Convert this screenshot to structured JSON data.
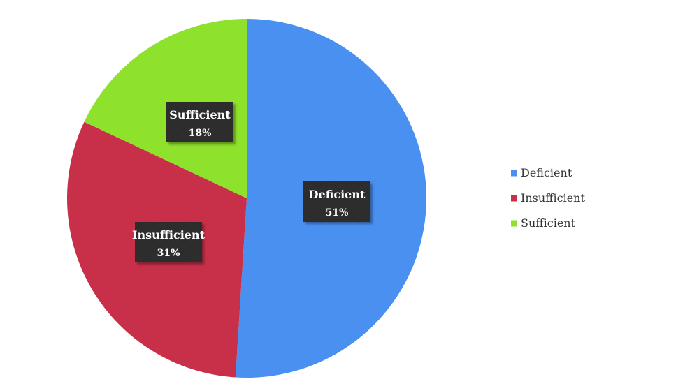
{
  "chart_data": {
    "type": "pie",
    "title": "",
    "slices": [
      {
        "label": "Deficient",
        "value": 51,
        "display": "51%",
        "color": "#4a90f0"
      },
      {
        "label": "Insufficient",
        "value": 31,
        "display": "31%",
        "color": "#c8304a"
      },
      {
        "label": "Sufficient",
        "value": 18,
        "display": "18%",
        "color": "#8fe22b"
      }
    ],
    "start_angle": "12 o'clock",
    "direction": "clockwise",
    "legend": {
      "position": "right",
      "items": [
        "Deficient",
        "Insufficient",
        "Sufficient"
      ]
    },
    "data_label_style": {
      "background": "#2f2f2f",
      "text_color": "#ffffff"
    }
  }
}
